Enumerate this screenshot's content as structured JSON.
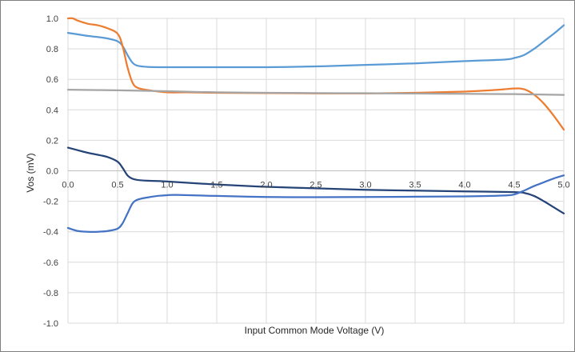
{
  "chart_data": {
    "type": "line",
    "title": "",
    "xlabel": "Input Common Mode Voltage (V)",
    "ylabel": "Vos (mV)",
    "xlim": [
      0,
      5
    ],
    "ylim": [
      -1,
      1
    ],
    "x_ticks": [
      "0.0",
      "0.5",
      "1.0",
      "1.5",
      "2.0",
      "2.5",
      "3.0",
      "3.5",
      "4.0",
      "4.5",
      "5.0"
    ],
    "y_ticks": [
      "1.0",
      "0.8",
      "0.6",
      "0.4",
      "0.2",
      "0.0",
      "-0.2",
      "-0.4",
      "-0.6",
      "-0.8",
      "-1.0"
    ],
    "grid": true,
    "legend": "none",
    "series": [
      {
        "color": "#5B9BD5",
        "x": [
          0,
          0.1,
          0.2,
          0.3,
          0.4,
          0.5,
          0.55,
          0.6,
          0.65,
          0.7,
          0.8,
          1.0,
          1.5,
          2.0,
          2.5,
          3.0,
          3.5,
          4.0,
          4.4,
          4.5,
          4.6,
          4.7,
          4.8,
          4.9,
          5.0
        ],
        "y": [
          0.905,
          0.895,
          0.885,
          0.878,
          0.868,
          0.85,
          0.82,
          0.76,
          0.71,
          0.69,
          0.682,
          0.68,
          0.68,
          0.68,
          0.685,
          0.695,
          0.705,
          0.72,
          0.73,
          0.74,
          0.76,
          0.8,
          0.85,
          0.9,
          0.955
        ]
      },
      {
        "color": "#ED7D31",
        "x": [
          0,
          0.05,
          0.1,
          0.2,
          0.3,
          0.4,
          0.5,
          0.55,
          0.6,
          0.65,
          0.7,
          0.8,
          1.0,
          1.2,
          1.5,
          2.0,
          2.5,
          3.0,
          3.5,
          4.0,
          4.3,
          4.5,
          4.6,
          4.7,
          4.8,
          4.9,
          5.0
        ],
        "y": [
          1.0,
          1.0,
          0.985,
          0.965,
          0.955,
          0.935,
          0.9,
          0.82,
          0.68,
          0.58,
          0.545,
          0.53,
          0.515,
          0.515,
          0.512,
          0.51,
          0.508,
          0.508,
          0.512,
          0.52,
          0.53,
          0.54,
          0.535,
          0.5,
          0.44,
          0.36,
          0.27
        ]
      },
      {
        "color": "#A5A5A5",
        "x": [
          0,
          0.5,
          1.0,
          1.5,
          2.0,
          2.5,
          3.0,
          3.5,
          4.0,
          4.5,
          5.0
        ],
        "y": [
          0.532,
          0.528,
          0.522,
          0.515,
          0.512,
          0.51,
          0.509,
          0.507,
          0.505,
          0.503,
          0.498
        ]
      },
      {
        "color": "#264478",
        "x": [
          0,
          0.1,
          0.2,
          0.3,
          0.4,
          0.5,
          0.55,
          0.6,
          0.65,
          0.7,
          0.8,
          1.0,
          1.5,
          2.0,
          2.5,
          3.0,
          3.5,
          4.0,
          4.5,
          4.6,
          4.7,
          4.8,
          4.9,
          5.0
        ],
        "y": [
          0.152,
          0.135,
          0.118,
          0.105,
          0.09,
          0.06,
          0.02,
          -0.03,
          -0.052,
          -0.06,
          -0.065,
          -0.07,
          -0.09,
          -0.105,
          -0.115,
          -0.125,
          -0.13,
          -0.135,
          -0.14,
          -0.145,
          -0.165,
          -0.2,
          -0.24,
          -0.28
        ]
      },
      {
        "color": "#4472C4",
        "x": [
          0,
          0.1,
          0.2,
          0.3,
          0.4,
          0.5,
          0.55,
          0.6,
          0.65,
          0.7,
          0.8,
          0.9,
          1.0,
          1.1,
          1.5,
          2.0,
          2.5,
          3.0,
          3.5,
          4.0,
          4.4,
          4.5,
          4.6,
          4.7,
          4.8,
          4.9,
          5.0
        ],
        "y": [
          -0.375,
          -0.395,
          -0.4,
          -0.4,
          -0.395,
          -0.38,
          -0.345,
          -0.28,
          -0.215,
          -0.19,
          -0.175,
          -0.165,
          -0.16,
          -0.158,
          -0.165,
          -0.172,
          -0.173,
          -0.172,
          -0.17,
          -0.168,
          -0.162,
          -0.155,
          -0.13,
          -0.1,
          -0.075,
          -0.05,
          -0.03
        ]
      }
    ]
  }
}
